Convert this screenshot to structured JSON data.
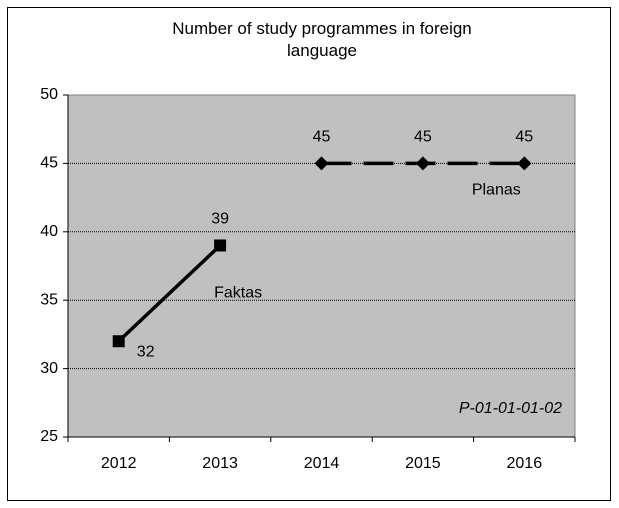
{
  "chart_data": {
    "type": "line",
    "title": "Number of study programmes in foreign language",
    "categories": [
      "2012",
      "2013",
      "2014",
      "2015",
      "2016"
    ],
    "series": [
      {
        "name": "Faktas",
        "color": "#000000",
        "marker": "square",
        "dashed": false,
        "values": [
          32,
          39,
          null,
          null,
          null
        ]
      },
      {
        "name": "Planas",
        "color": "#000000",
        "marker": "diamond",
        "dashed": true,
        "values": [
          null,
          null,
          45,
          45,
          45
        ]
      }
    ],
    "annotation": "P-01-01-01-02",
    "ylim": [
      25,
      50
    ],
    "yticks": [
      25,
      30,
      35,
      40,
      45,
      50
    ],
    "grid": true
  }
}
